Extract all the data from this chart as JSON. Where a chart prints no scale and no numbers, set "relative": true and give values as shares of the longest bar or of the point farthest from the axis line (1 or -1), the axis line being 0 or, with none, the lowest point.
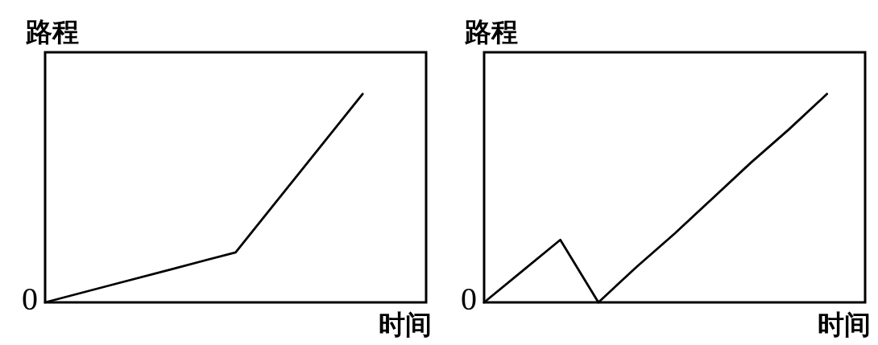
{
  "chart_data": [
    {
      "type": "line",
      "ylabel": "路程",
      "xlabel": "时间",
      "relative": true,
      "categories": [
        null,
        null,
        null,
        null,
        null,
        null,
        null
      ],
      "series": [
        {
          "color": "#000000",
          "values": [
            0,
            0.08,
            0.16,
            0.24,
            0.62,
            1,
            null
          ]
        }
      ],
      "annotations": [
        "0"
      ]
    },
    {
      "type": "line",
      "ylabel": "路程",
      "xlabel": "时间",
      "relative": true,
      "categories": [
        null,
        null,
        null,
        null,
        null,
        null,
        null,
        null,
        null,
        null,
        null
      ],
      "series": [
        {
          "color": "#000000",
          "values": [
            0,
            0.15,
            0.3,
            0,
            0.17,
            0.33,
            0.5,
            0.67,
            0.83,
            1,
            null
          ]
        }
      ],
      "annotations": [
        "0"
      ]
    }
  ]
}
